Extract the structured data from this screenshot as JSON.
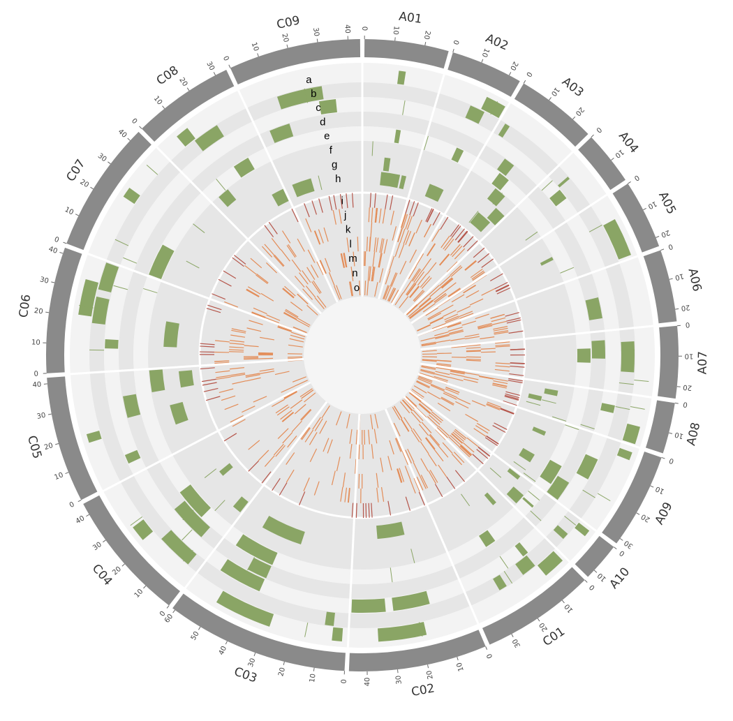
{
  "colors": {
    "ideogram": "#8a8a8a",
    "track_light": "#f3f3f3",
    "track_dark": "#e6e6e6",
    "separator": "#ffffff",
    "green_feature": "#8aa565",
    "orange_feature": "#e38c57",
    "red_feature": "#b5554a"
  },
  "chart_data": {
    "type": "circos",
    "chromosomes": [
      {
        "name": "A01",
        "length": 28,
        "ticks": [
          0,
          10,
          20
        ]
      },
      {
        "name": "A02",
        "length": 24,
        "ticks": [
          0,
          10,
          20
        ]
      },
      {
        "name": "A03",
        "length": 27,
        "ticks": [
          0,
          10,
          20
        ]
      },
      {
        "name": "A04",
        "length": 18,
        "ticks": [
          0,
          10
        ]
      },
      {
        "name": "A05",
        "length": 23,
        "ticks": [
          0,
          10,
          20
        ]
      },
      {
        "name": "A06",
        "length": 24,
        "ticks": [
          0,
          10,
          20
        ]
      },
      {
        "name": "A07",
        "length": 24,
        "ticks": [
          0,
          10,
          20
        ]
      },
      {
        "name": "A08",
        "length": 17,
        "ticks": [
          0,
          10
        ]
      },
      {
        "name": "A09",
        "length": 32,
        "ticks": [
          0,
          10,
          20,
          30
        ]
      },
      {
        "name": "A10",
        "length": 13,
        "ticks": [
          0,
          10
        ]
      },
      {
        "name": "C01",
        "length": 38,
        "ticks": [
          0,
          10,
          20,
          30
        ]
      },
      {
        "name": "C02",
        "length": 46,
        "ticks": [
          0,
          10,
          20,
          30,
          40
        ]
      },
      {
        "name": "C03",
        "length": 61,
        "ticks": [
          0,
          10,
          20,
          30,
          40,
          50,
          60
        ]
      },
      {
        "name": "C04",
        "length": 44,
        "ticks": [
          0,
          10,
          20,
          30,
          40
        ]
      },
      {
        "name": "C05",
        "length": 42,
        "ticks": [
          0,
          10,
          20,
          30,
          40
        ]
      },
      {
        "name": "C06",
        "length": 42,
        "ticks": [
          0,
          10,
          20,
          30,
          40
        ]
      },
      {
        "name": "C07",
        "length": 44,
        "ticks": [
          0,
          10,
          20,
          30,
          40
        ]
      },
      {
        "name": "C08",
        "length": 34,
        "ticks": [
          0,
          10,
          20,
          30
        ]
      },
      {
        "name": "C09",
        "length": 44,
        "ticks": [
          0,
          10,
          20,
          30,
          40
        ]
      }
    ],
    "tracks": [
      "a",
      "b",
      "c",
      "d",
      "e",
      "f",
      "g",
      "h",
      "i",
      "j",
      "k",
      "l",
      "m",
      "n",
      "o"
    ]
  }
}
